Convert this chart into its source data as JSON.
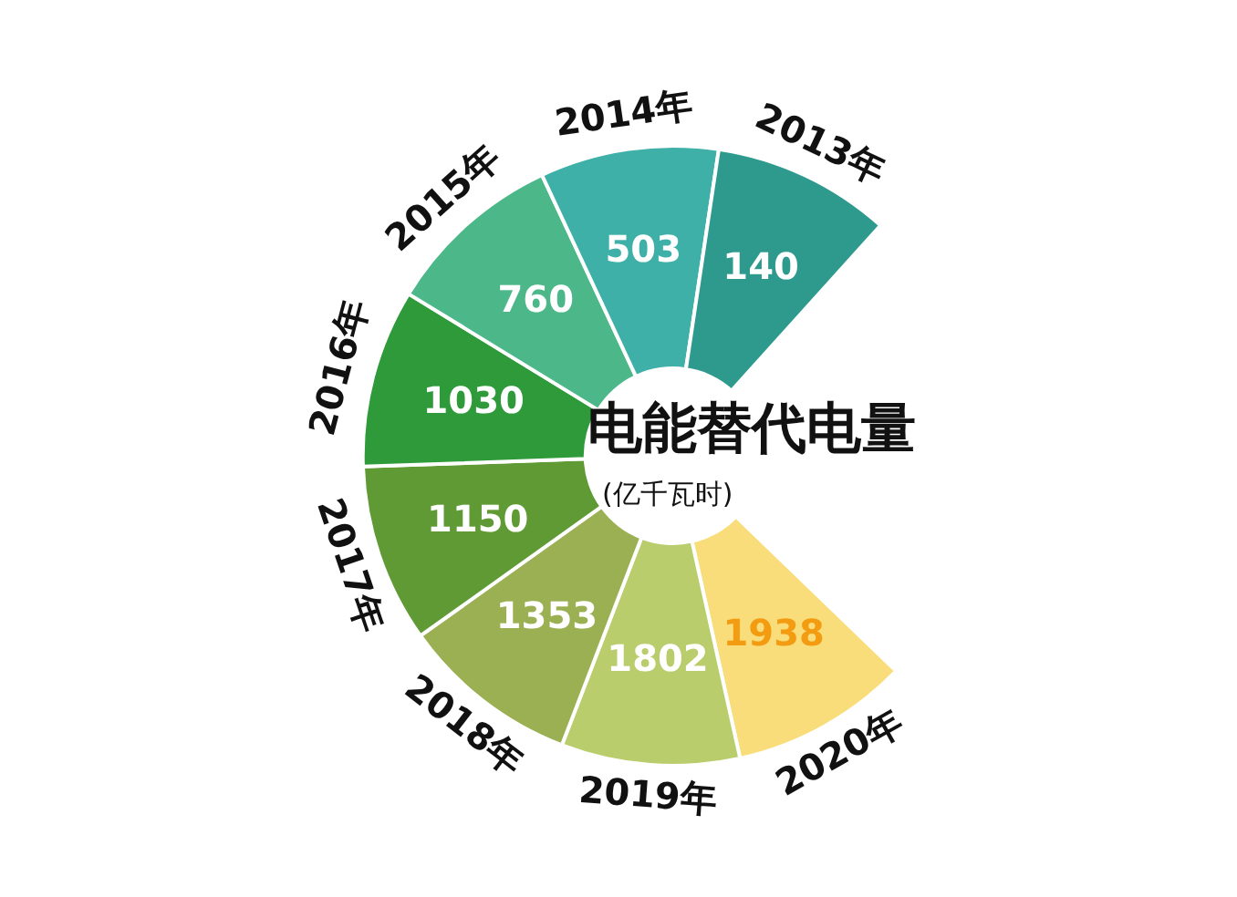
{
  "chart_data": {
    "type": "other",
    "title": "电能替代电量",
    "subtitle": "(亿千瓦时)",
    "categories": [
      "2013年",
      "2014年",
      "2015年",
      "2016年",
      "2017年",
      "2018年",
      "2019年",
      "2020年"
    ],
    "values": [
      140,
      503,
      760,
      1030,
      1150,
      1353,
      1802,
      1938
    ],
    "colors": [
      "#2e9a8e",
      "#3fb0a8",
      "#4cb88a",
      "#2f9a3a",
      "#5f9a34",
      "#9bb052",
      "#b9cd6c",
      "#f9dd7a"
    ],
    "data_labels": true
  }
}
